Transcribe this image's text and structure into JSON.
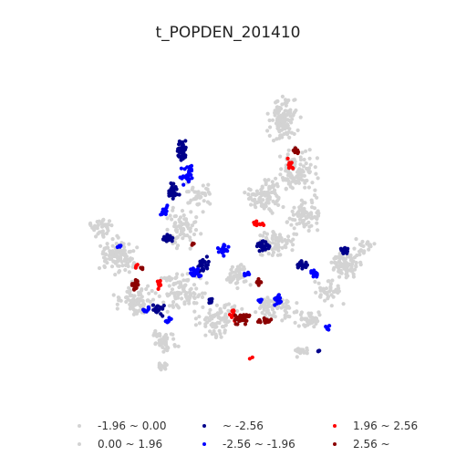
{
  "title": "t_POPDEN_201410",
  "colors": {
    "neg_low": "#d3d3d3",
    "pos_low": "#d3d3d3",
    "very_neg": "#00008b",
    "neg": "#0000ff",
    "pos": "#ff0000",
    "very_pos": "#8b0000"
  },
  "legend": [
    {
      "label": "-1.96 ~ 0.00",
      "color": "#d3d3d3"
    },
    {
      "label": "0.00 ~ 1.96",
      "color": "#d3d3d3"
    },
    {
      "label": "~ -2.56",
      "color": "#00008b"
    },
    {
      "label": "-2.56 ~ -1.96",
      "color": "#0000ff"
    },
    {
      "label": "1.96 ~ 2.56",
      "color": "#ff0000"
    },
    {
      "label": "2.56 ~",
      "color": "#8b0000"
    }
  ]
}
